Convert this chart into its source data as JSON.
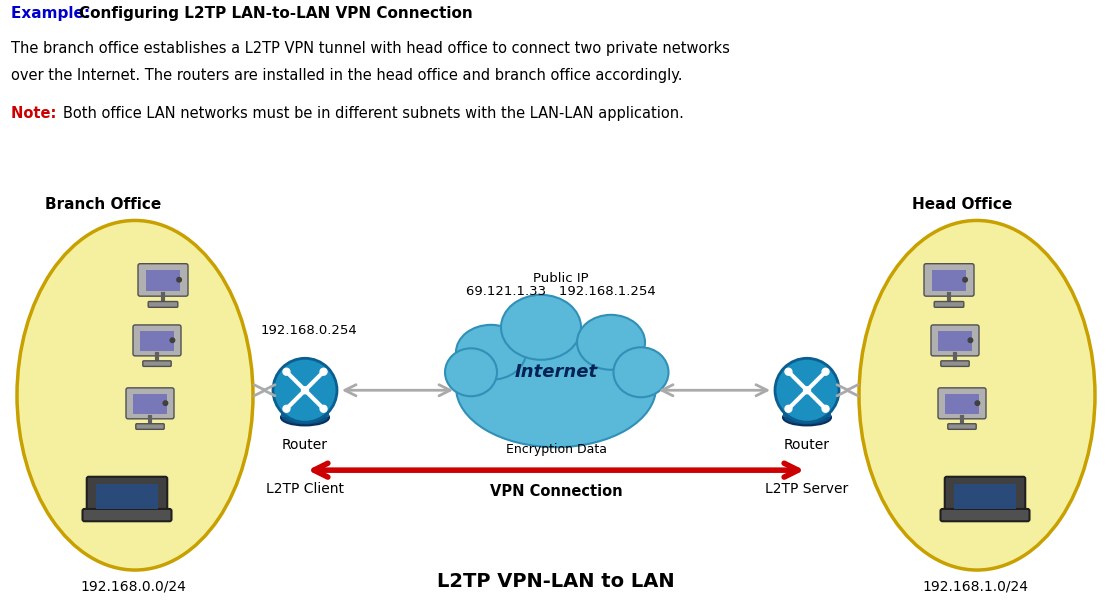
{
  "title_example": "Example: ",
  "title_bold": "Configuring L2TP LAN-to-LAN VPN Connection",
  "body_line1": "The branch office establishes a L2TP VPN tunnel with head office to connect two private networks",
  "body_line2": "over the Internet. The routers are installed in the head office and branch office accordingly.",
  "note_label": "Note: ",
  "note_text": "Both office LAN networks must be in different subnets with the LAN-LAN application.",
  "branch_label": "Branch Office",
  "head_label": "Head Office",
  "branch_ip_lan": "192.168.0.254",
  "public_ip_line1": "Public IP",
  "public_ip_line2": "69.121.1.33   192.168.1.254",
  "branch_subnet": "192.168.0.0/24",
  "head_subnet": "192.168.1.0/24",
  "router_label": "Router",
  "l2tp_client_label": "L2TP Client",
  "l2tp_server_label": "L2TP Server",
  "encryption_label": "Encryption Data",
  "vpn_label": "VPN Connection",
  "diagram_title": "L2TP VPN-LAN to LAN",
  "internet_label": "Internet",
  "bg_color": "#ffffff",
  "ellipse_fill": "#f5f0a0",
  "ellipse_edge": "#c8a000",
  "router_color_top": "#1a8fc0",
  "router_color_bot": "#1060a0",
  "internet_color": "#5ab8d8",
  "arrow_gray": "#aaaaaa",
  "arrow_red": "#cc0000",
  "text_color": "#000000",
  "example_color": "#0000cc",
  "note_color": "#cc0000"
}
